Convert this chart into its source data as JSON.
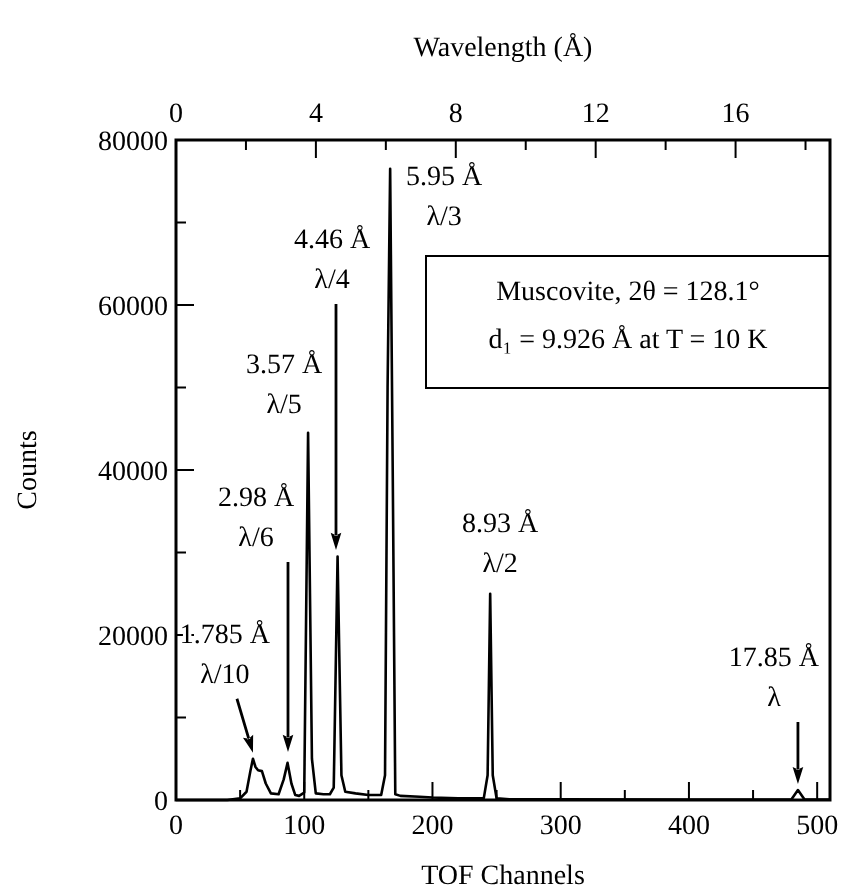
{
  "chart_data": {
    "type": "line",
    "xlabel": "TOF Channels",
    "ylabel": "Counts",
    "x2label": "Wavelength (Å)",
    "xlim": [
      0,
      510
    ],
    "ylim": [
      0,
      80000
    ],
    "x2lim": [
      0,
      18.7
    ],
    "xticks": [
      0,
      {
        "value": 50,
        "label": null
      },
      100,
      {
        "value": 150,
        "label": null
      },
      200,
      {
        "value": 250,
        "label": null
      },
      300,
      {
        "value": 350,
        "label": null
      },
      400,
      {
        "value": 450,
        "label": null
      },
      500
    ],
    "yticks": [
      0,
      {
        "value": 10000,
        "label": null
      },
      20000,
      {
        "value": 30000,
        "label": null
      },
      40000,
      {
        "value": 50000,
        "label": null
      },
      60000,
      {
        "value": 70000,
        "label": null
      },
      80000
    ],
    "x2ticks": [
      0,
      {
        "value": 2,
        "label": null
      },
      4,
      {
        "value": 6,
        "label": null
      },
      8,
      {
        "value": 10,
        "label": null
      },
      12,
      {
        "value": 14,
        "label": null
      },
      16,
      {
        "value": 18,
        "label": null
      }
    ],
    "grid": false,
    "line_style": "solid",
    "series": [
      {
        "color": "#000000",
        "x": [
          0,
          40,
          50,
          55,
          58,
          60,
          62,
          64,
          67,
          70,
          74,
          80,
          84,
          87,
          90,
          93,
          96,
          100,
          103,
          106,
          109,
          115,
          120,
          123,
          126,
          129,
          132,
          140,
          150,
          160,
          163,
          165,
          167,
          169,
          171,
          175,
          190,
          200,
          220,
          240,
          243,
          245,
          247,
          250,
          260,
          300,
          400,
          475,
          480,
          485,
          490,
          495,
          510
        ],
        "values": [
          0,
          0,
          200,
          1000,
          3500,
          5000,
          4000,
          3600,
          3500,
          2000,
          800,
          700,
          2500,
          4500,
          2000,
          600,
          500,
          900,
          44500,
          5000,
          800,
          700,
          700,
          1500,
          29500,
          3000,
          1000,
          800,
          600,
          600,
          3000,
          50000,
          76500,
          40000,
          700,
          500,
          400,
          300,
          200,
          200,
          3000,
          25000,
          3000,
          200,
          100,
          100,
          50,
          50,
          100,
          1200,
          100,
          50,
          50
        ]
      }
    ],
    "annotations": [
      {
        "text": "1.785 Å\nλ/10",
        "x": 60,
        "y": 5000
      },
      "2.98 Å\nλ/6",
      {
        "text": "3.57 Å\nλ/5",
        "x": 103,
        "y": 44500
      },
      "4.46 Å\nλ/4",
      {
        "text": "5.95 Å\nλ/3",
        "x": 167,
        "y": 76500
      },
      {
        "text": "8.93 Å\nλ/2",
        "x": 245,
        "y": 25000
      },
      {
        "text": "17.85 Å\nλ",
        "x": 485,
        "y": 1200
      },
      "Muscovite, 2θ = 128.1°",
      "d₁ = 9.926 Å at T = 10 K"
    ]
  }
}
